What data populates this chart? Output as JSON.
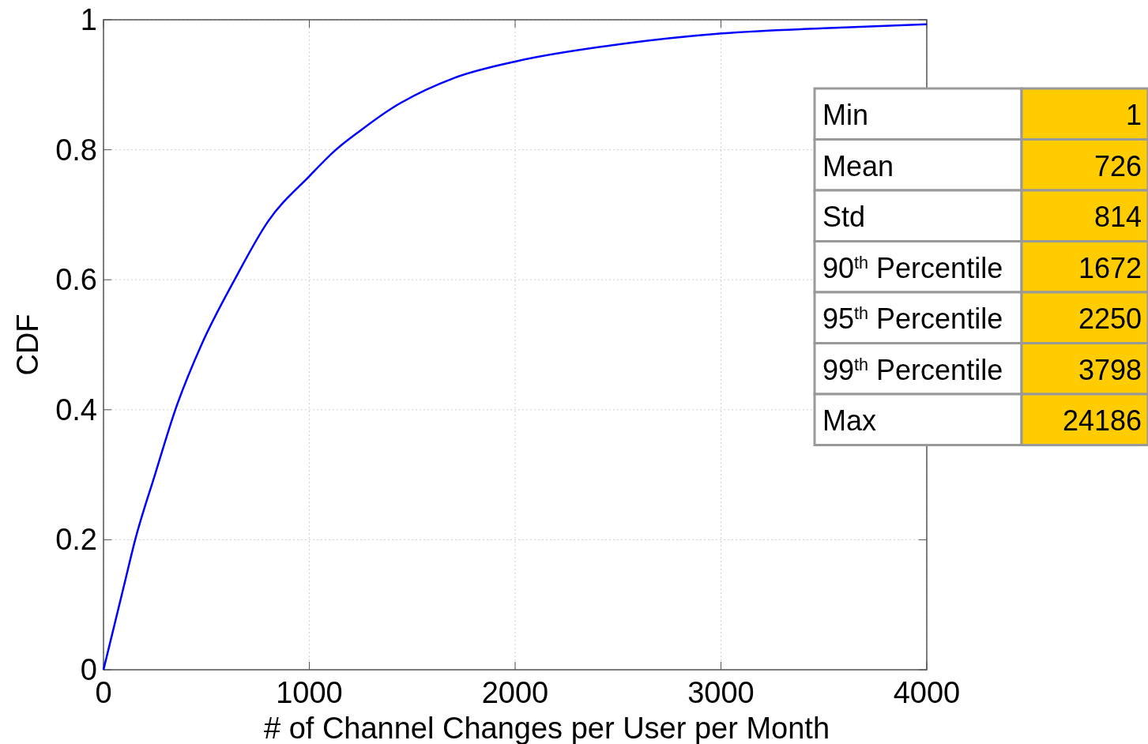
{
  "chart_data": [
    {
      "type": "line",
      "xlabel": "# of Channel Changes per User per Month",
      "ylabel": "CDF",
      "xlim": [
        0,
        4000
      ],
      "ylim": [
        0,
        1
      ],
      "xticks": [
        0,
        1000,
        2000,
        3000,
        4000
      ],
      "yticks": [
        0,
        0.2,
        0.4,
        0.6,
        0.8,
        1
      ],
      "grid": true,
      "line_style": "solid",
      "series": [
        {
          "color": "#0000ff",
          "x": [
            0,
            100,
            154,
            250,
            349,
            476,
            637,
            800,
            1002,
            1129,
            1250,
            1397,
            1700,
            2004,
            2500,
            3006,
            3500,
            4000
          ],
          "values": [
            0,
            0.13,
            0.2,
            0.3,
            0.4,
            0.5,
            0.6,
            0.69,
            0.76,
            0.8,
            0.83,
            0.863,
            0.91,
            0.936,
            0.962,
            0.979,
            0.987,
            0.993
          ]
        }
      ]
    },
    {
      "type": "other",
      "categories": [
        "Min",
        "Mean",
        "Std",
        "90$^{th}$ Percentile",
        "95$^{th}$ Percentile",
        "99$^{th}$ Percentile",
        "Max"
      ],
      "values": [
        1,
        726,
        814,
        1672,
        2250,
        3798,
        24186
      ],
      "color": "#ffcc00",
      "data_labels": true
    }
  ]
}
